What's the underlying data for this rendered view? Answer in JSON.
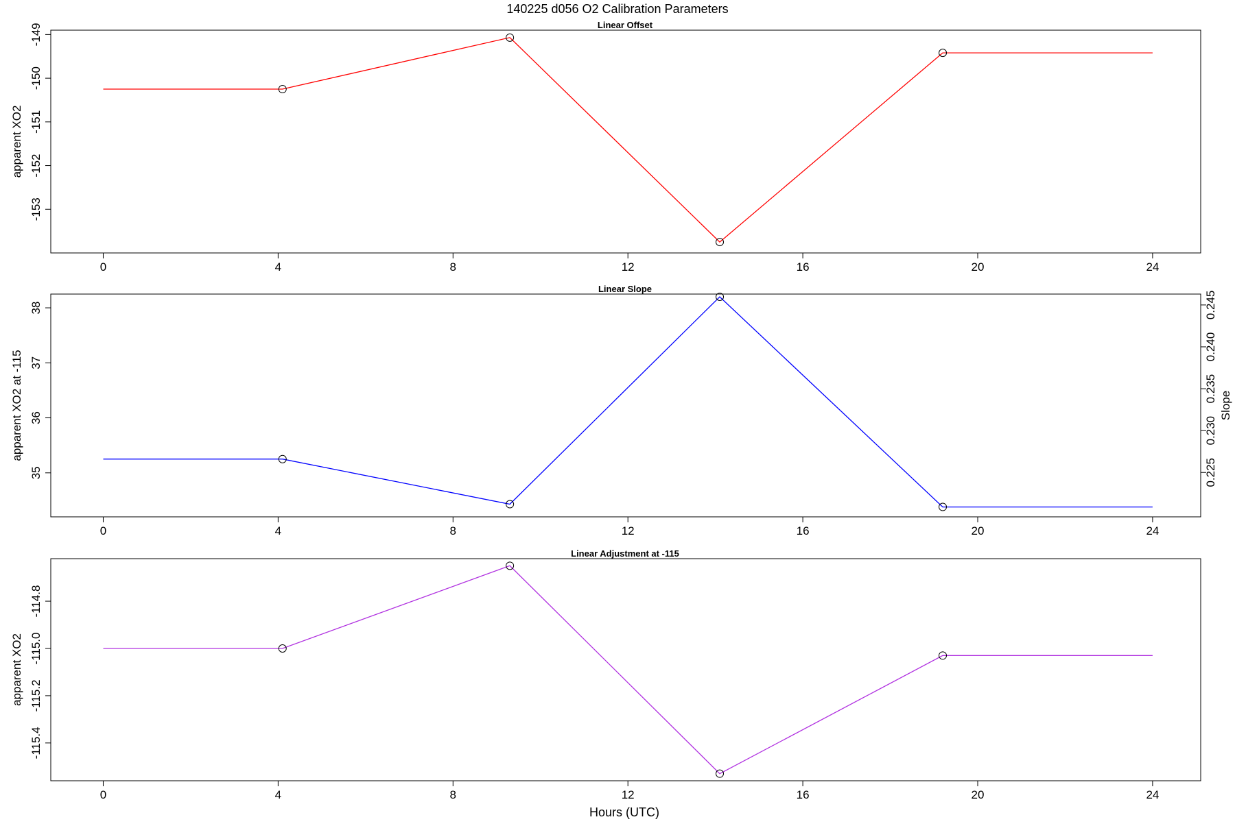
{
  "figure": {
    "title": "140225   d056   O2 Calibration Parameters",
    "xlabel": "Hours (UTC)"
  },
  "chart_data": [
    {
      "type": "line",
      "title": "Linear Offset",
      "xlabel": "",
      "ylabel": "apparent XO2",
      "color": "#ff0000",
      "xlim": [
        -1.2,
        25.1
      ],
      "ylim": [
        -154.0,
        -148.9
      ],
      "x_ticks": [
        0,
        4,
        8,
        12,
        16,
        20,
        24
      ],
      "y_ticks": [
        -149,
        -150,
        -151,
        -152,
        -153
      ],
      "series": [
        {
          "x": [
            0,
            4.1,
            9.3,
            14.1,
            19.2,
            24
          ],
          "y": [
            -150.25,
            -150.25,
            -149.07,
            -153.75,
            -149.42,
            -149.42
          ]
        }
      ],
      "markers_x": [
        4.1,
        9.3,
        14.1,
        19.2
      ],
      "markers_y": [
        -150.25,
        -149.07,
        -153.75,
        -149.42
      ]
    },
    {
      "type": "line",
      "title": "Linear Slope",
      "xlabel": "",
      "ylabel": "apparent XO2 at -115",
      "ylabel_right": "Slope",
      "color": "#0000ff",
      "xlim": [
        -1.2,
        25.1
      ],
      "ylim": [
        34.2,
        38.25
      ],
      "x_ticks": [
        0,
        4,
        8,
        12,
        16,
        20,
        24
      ],
      "y_ticks": [
        35,
        36,
        37,
        38
      ],
      "y2lim": [
        0.2197,
        0.2463
      ],
      "y2_ticks": [
        0.225,
        0.23,
        0.235,
        0.24,
        0.245
      ],
      "series": [
        {
          "x": [
            0,
            4.1,
            9.3,
            14.1,
            19.2,
            24
          ],
          "y": [
            35.25,
            35.25,
            34.43,
            38.2,
            34.38,
            34.38
          ]
        }
      ],
      "markers_x": [
        4.1,
        9.3,
        14.1,
        19.2
      ],
      "markers_y": [
        35.25,
        34.43,
        38.2,
        34.38
      ]
    },
    {
      "type": "line",
      "title": "Linear Adjustment at -115",
      "xlabel": "Hours (UTC)",
      "ylabel": "apparent XO2",
      "color": "#b030e0",
      "xlim": [
        -1.2,
        25.1
      ],
      "ylim": [
        -115.56,
        -114.62
      ],
      "x_ticks": [
        0,
        4,
        8,
        12,
        16,
        20,
        24
      ],
      "y_ticks": [
        -114.8,
        -115.0,
        -115.2,
        -115.4
      ],
      "series": [
        {
          "x": [
            0,
            4.1,
            9.3,
            14.1,
            19.2,
            24
          ],
          "y": [
            -115.0,
            -115.0,
            -114.65,
            -115.53,
            -115.03,
            -115.03
          ]
        }
      ],
      "markers_x": [
        4.1,
        9.3,
        14.1,
        19.2
      ],
      "markers_y": [
        -115.0,
        -114.65,
        -115.53,
        -115.03
      ]
    }
  ]
}
